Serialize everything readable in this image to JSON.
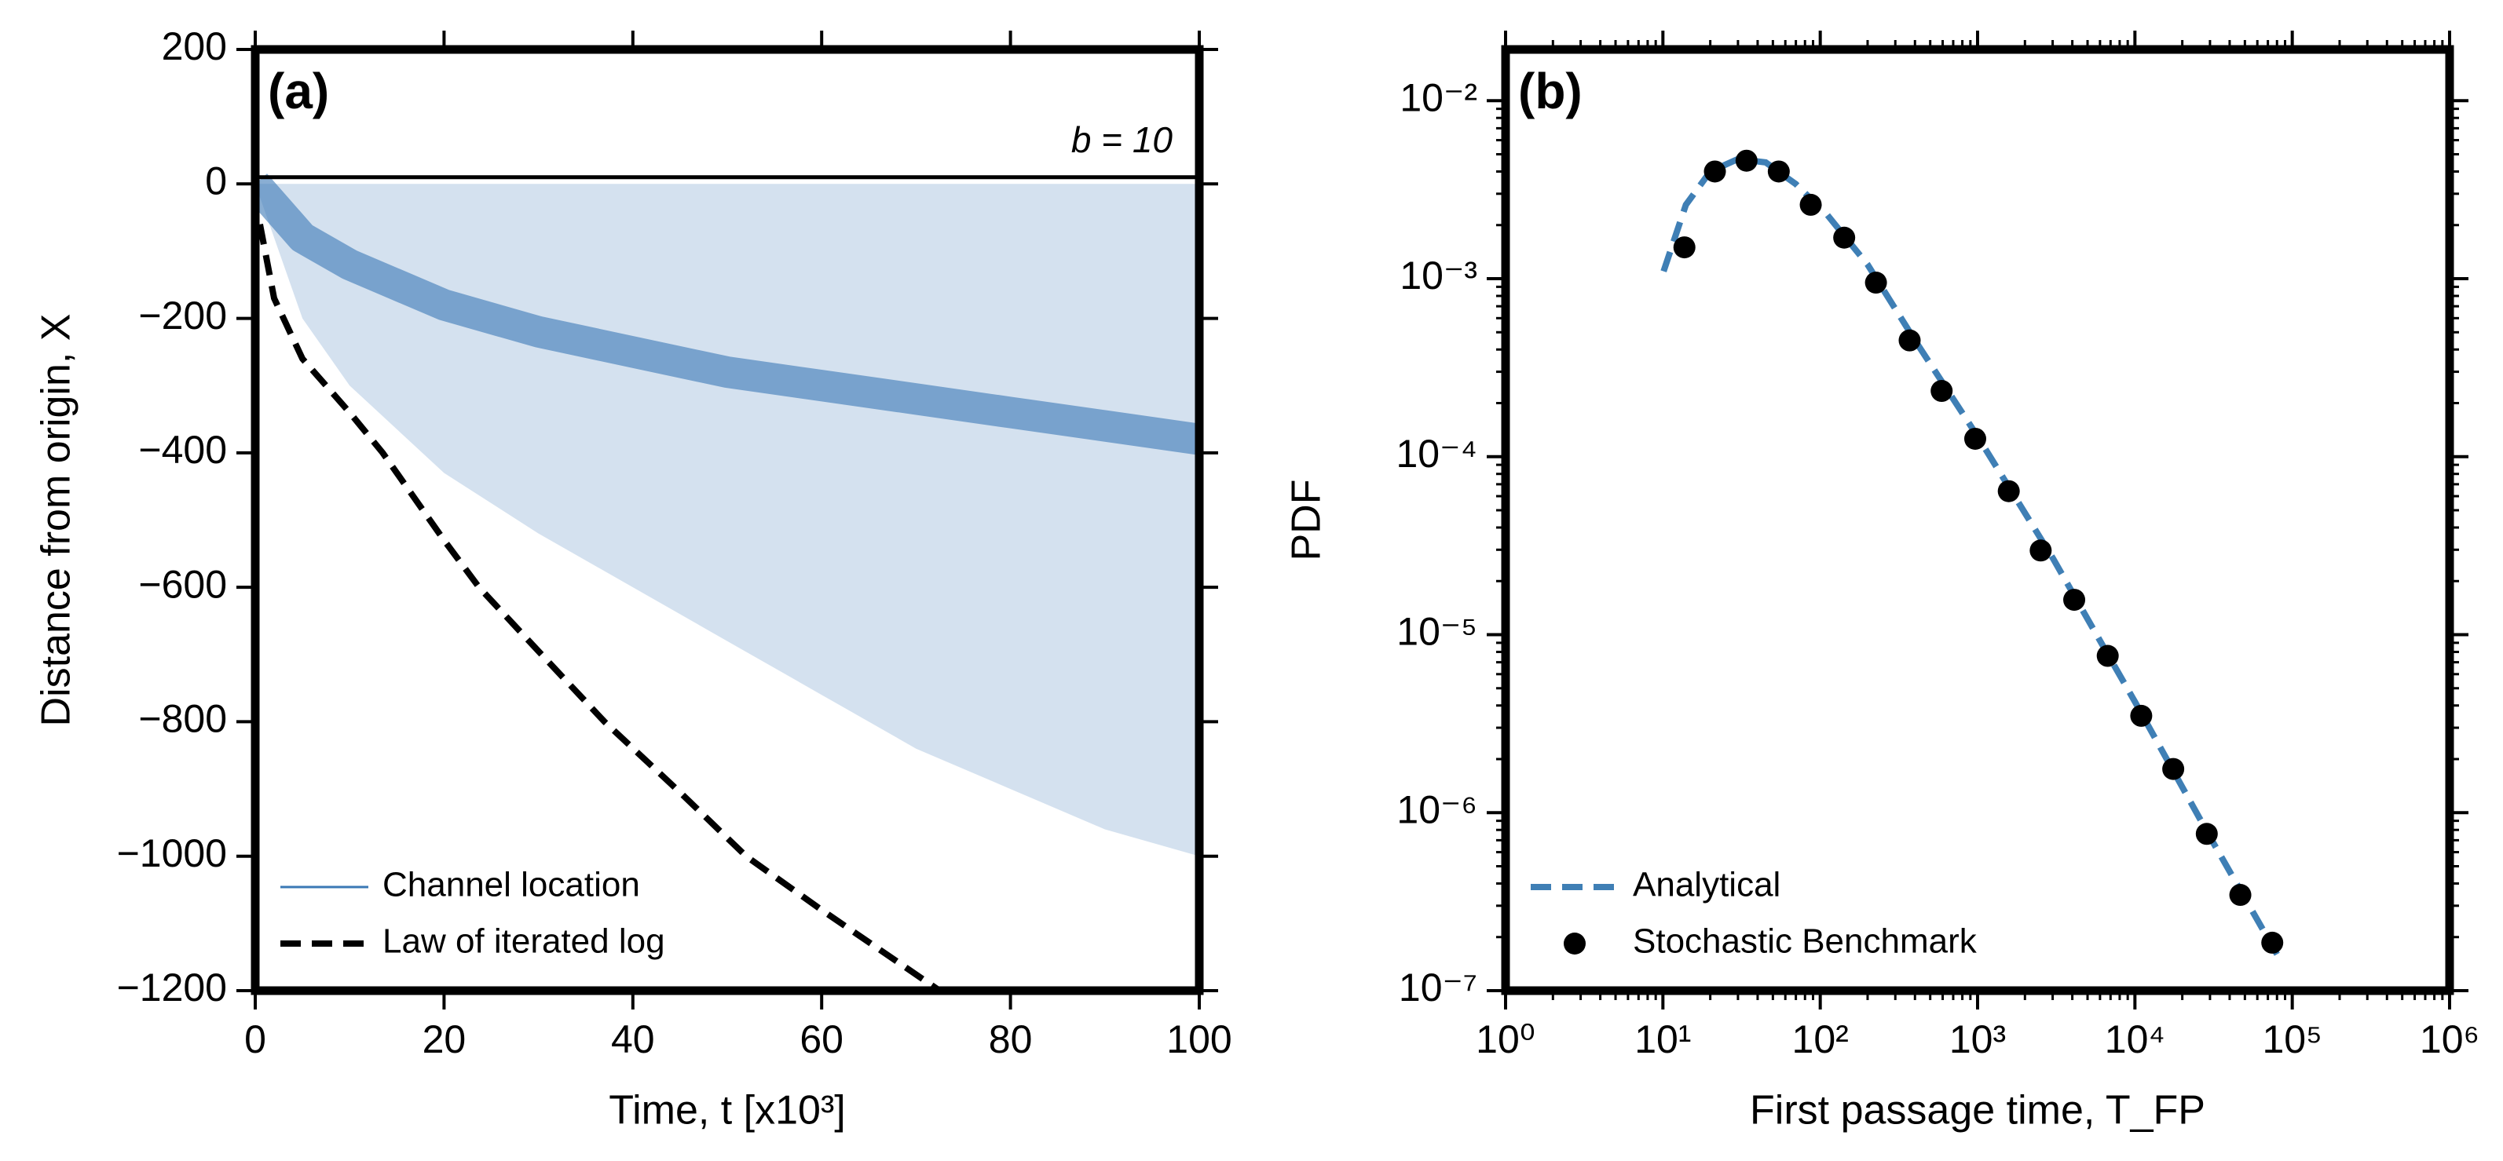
{
  "chart_data": [
    {
      "type": "line",
      "panel_label": "(a)",
      "xlabel": "Time, t [x10³]",
      "ylabel": "Distance from origin, X",
      "xlim": [
        0,
        100
      ],
      "ylim": [
        -1200,
        200
      ],
      "xticks": [
        0,
        20,
        40,
        60,
        80,
        100
      ],
      "yticks": [
        {
          "value": -1200,
          "label": "−1200"
        },
        {
          "value": -1000,
          "label": "−1000"
        },
        {
          "value": -800,
          "label": "−800"
        },
        {
          "value": -600,
          "label": "−600"
        },
        {
          "value": -400,
          "label": "−400"
        },
        {
          "value": -200,
          "label": "−200"
        },
        0,
        200
      ],
      "barrier": 10,
      "annotation": "b = 10",
      "legend": "lower left",
      "log": false,
      "series": [
        {
          "name": "Channel location",
          "color": "#3a78b5",
          "style": "band",
          "x": [
            0,
            5,
            10,
            20,
            30,
            40,
            50,
            60,
            70,
            80,
            90,
            100
          ],
          "values": [
            0,
            -80,
            -120,
            -180,
            -220,
            -250,
            -280,
            -300,
            -320,
            -340,
            -360,
            -380
          ],
          "upper": [
            0,
            0,
            0,
            0,
            0,
            0,
            0,
            0,
            0,
            0,
            0,
            0
          ],
          "lower": [
            0,
            -200,
            -300,
            -430,
            -520,
            -600,
            -680,
            -760,
            -840,
            -900,
            -960,
            -1000
          ]
        },
        {
          "name": "Law of iterated log",
          "color": "#000000",
          "style": "dashed",
          "x": [
            0.5,
            2,
            5,
            10,
            13.5,
            20,
            23.7,
            30,
            37,
            45,
            52,
            60,
            72.5
          ],
          "values": [
            -60,
            -170,
            -260,
            -340,
            -400,
            -530,
            -600,
            -695,
            -800,
            -905,
            -1000,
            -1080,
            -1200
          ]
        }
      ]
    },
    {
      "type": "line",
      "panel_label": "(b)",
      "xlabel": "First passage time, T_FP",
      "ylabel": "PDF",
      "xlim": [
        1,
        1000000
      ],
      "ylim": [
        1e-07,
        0.0194
      ],
      "log": true,
      "minor_ticks": true,
      "legend": "lower left",
      "xticks": [
        {
          "value": 1,
          "label": "10⁰"
        },
        {
          "value": 10,
          "label": "10¹"
        },
        {
          "value": 100,
          "label": "10²"
        },
        {
          "value": 1000,
          "label": "10³"
        },
        {
          "value": 10000,
          "label": "10⁴"
        },
        {
          "value": 100000,
          "label": "10⁵"
        },
        {
          "value": 1000000,
          "label": "10⁶"
        }
      ],
      "yticks": [
        {
          "value": 1e-07,
          "label": "10⁻⁷"
        },
        {
          "value": 1e-06,
          "label": "10⁻⁶"
        },
        {
          "value": 1e-05,
          "label": "10⁻⁵"
        },
        {
          "value": 0.0001,
          "label": "10⁻⁴"
        },
        {
          "value": 0.001,
          "label": "10⁻³"
        },
        {
          "value": 0.01,
          "label": "10⁻²"
        }
      ],
      "series": [
        {
          "name": "Analytical",
          "color": "#3f7fb5",
          "style": "dashed",
          "x": [
            10.1,
            14,
            20,
            30,
            45,
            70,
            110,
            200,
            400,
            1000,
            3000,
            10000,
            30000,
            80000
          ],
          "values": [
            0.0011,
            0.0026,
            0.004,
            0.0047,
            0.0045,
            0.0034,
            0.0023,
            0.0012,
            0.00045,
            0.00013,
            2.7e-05,
            4.2e-06,
            7.3e-07,
            1.6e-07
          ]
        },
        {
          "name": "Stochastic Benchmark",
          "color": "#000000",
          "style": "markers",
          "x": [
            13.7,
            21.4,
            34,
            54.5,
            87,
            142,
            226,
            370,
            591,
            966,
            1578,
            2518,
            4113,
            6716,
            10970,
            17520,
            28620,
            46770,
            74650
          ],
          "values": [
            0.0015,
            0.004,
            0.0046,
            0.004,
            0.0026,
            0.0017,
            0.00095,
            0.00045,
            0.000234,
            0.000126,
            6.4e-05,
            2.97e-05,
            1.57e-05,
            7.6e-06,
            3.5e-06,
            1.76e-06,
            7.6e-07,
            3.45e-07,
            1.86e-07
          ]
        }
      ]
    }
  ]
}
